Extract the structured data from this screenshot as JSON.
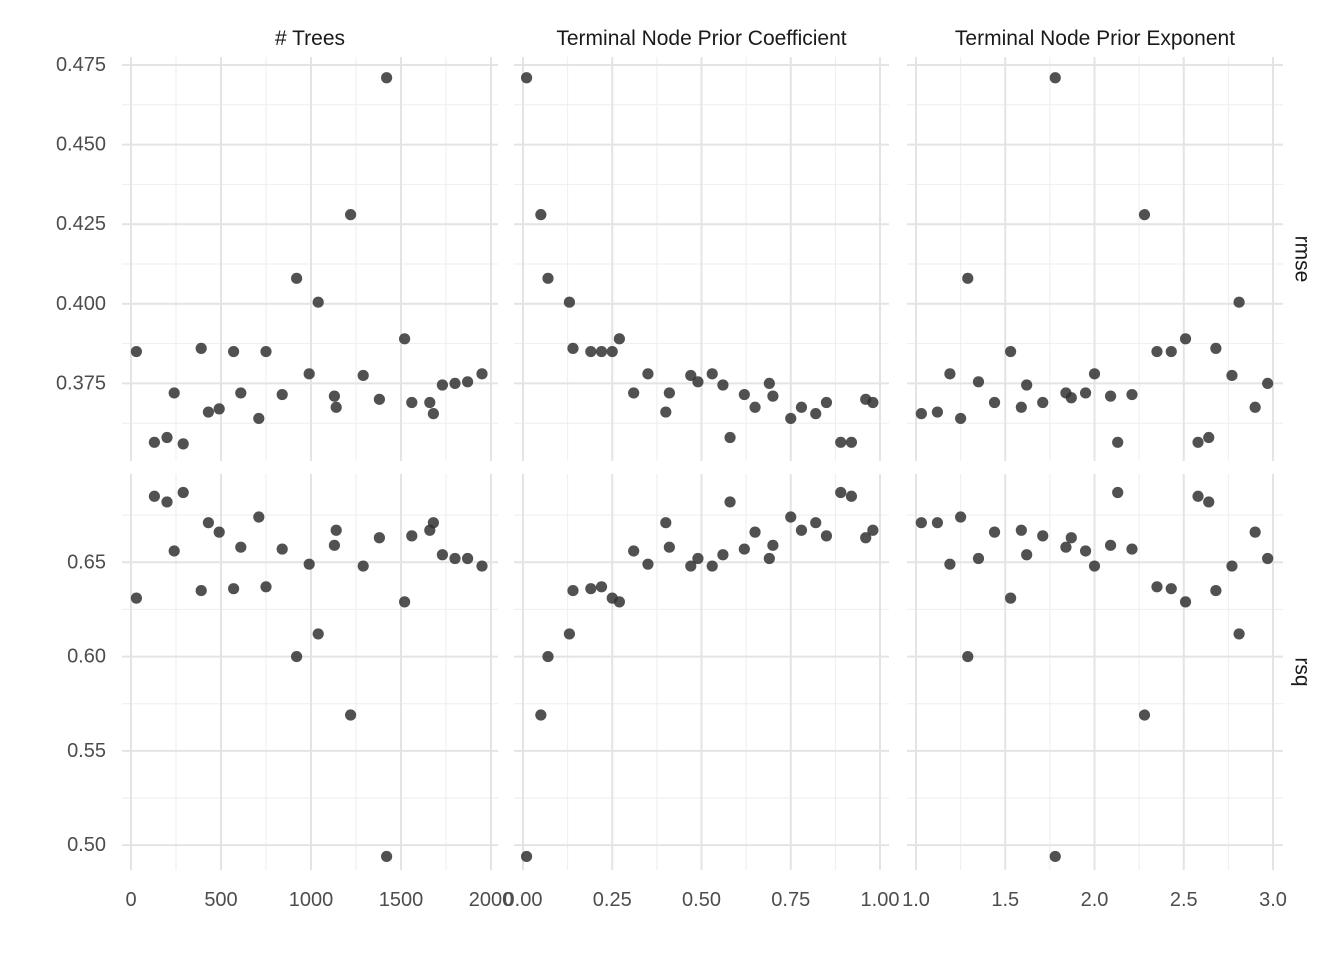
{
  "chart_data": {
    "type": "scatter",
    "point_color": "#333333",
    "grid": true,
    "facet_columns": [
      {
        "key": "trees",
        "label": "# Trees",
        "xlim": [
          0,
          2000
        ],
        "ticks": [
          0,
          500,
          1000,
          1500,
          2000
        ],
        "tick_labels": [
          "0",
          "500",
          "1000",
          "1500",
          "2000"
        ],
        "minor": [
          250,
          750,
          1250,
          1750
        ]
      },
      {
        "key": "coef",
        "label": "Terminal Node Prior Coefficient",
        "xlim": [
          0,
          1
        ],
        "ticks": [
          0,
          0.25,
          0.5,
          0.75,
          1
        ],
        "tick_labels": [
          "0.00",
          "0.25",
          "0.50",
          "0.75",
          "1.00"
        ],
        "minor": [
          0.125,
          0.375,
          0.625,
          0.875
        ]
      },
      {
        "key": "expo",
        "label": "Terminal Node Prior Exponent",
        "xlim": [
          1,
          3
        ],
        "ticks": [
          1,
          1.5,
          2,
          2.5,
          3
        ],
        "tick_labels": [
          "1.0",
          "1.5",
          "2.0",
          "2.5",
          "3.0"
        ],
        "minor": [
          1.25,
          1.75,
          2.25,
          2.75
        ]
      }
    ],
    "facet_rows": [
      {
        "key": "rmse",
        "label": "rmse",
        "ylim": [
          0.35,
          0.475
        ],
        "ticks": [
          0.375,
          0.4,
          0.425,
          0.45,
          0.475
        ],
        "tick_labels": [
          "0.375",
          "0.400",
          "0.425",
          "0.450",
          "0.475"
        ],
        "minor": [
          0.3625,
          0.3875,
          0.4125,
          0.4375,
          0.4625
        ]
      },
      {
        "key": "rsq",
        "label": "rsq",
        "ylim": [
          0.49,
          0.7
        ],
        "ticks": [
          0.5,
          0.55,
          0.6,
          0.65
        ],
        "tick_labels": [
          "0.50",
          "0.55",
          "0.60",
          "0.65"
        ],
        "minor": [
          0.525,
          0.575,
          0.625,
          0.675
        ]
      }
    ],
    "panels": [
      {
        "col": "trees",
        "row": "rmse",
        "points": [
          [
            30,
            0.385
          ],
          [
            130,
            0.3565
          ],
          [
            200,
            0.358
          ],
          [
            240,
            0.372
          ],
          [
            290,
            0.356
          ],
          [
            390,
            0.386
          ],
          [
            430,
            0.366
          ],
          [
            490,
            0.367
          ],
          [
            570,
            0.385
          ],
          [
            610,
            0.372
          ],
          [
            710,
            0.364
          ],
          [
            750,
            0.385
          ],
          [
            840,
            0.3715
          ],
          [
            920,
            0.408
          ],
          [
            990,
            0.378
          ],
          [
            1040,
            0.4005
          ],
          [
            1130,
            0.371
          ],
          [
            1140,
            0.3675
          ],
          [
            1220,
            0.428
          ],
          [
            1290,
            0.3775
          ],
          [
            1380,
            0.37
          ],
          [
            1420,
            0.471
          ],
          [
            1520,
            0.389
          ],
          [
            1560,
            0.369
          ],
          [
            1660,
            0.369
          ],
          [
            1680,
            0.3655
          ],
          [
            1730,
            0.3745
          ],
          [
            1800,
            0.375
          ],
          [
            1870,
            0.3755
          ],
          [
            1950,
            0.378
          ]
        ]
      },
      {
        "col": "trees",
        "row": "rsq",
        "points": [
          [
            30,
            0.631
          ],
          [
            130,
            0.685
          ],
          [
            200,
            0.682
          ],
          [
            240,
            0.656
          ],
          [
            290,
            0.687
          ],
          [
            390,
            0.635
          ],
          [
            430,
            0.671
          ],
          [
            490,
            0.666
          ],
          [
            570,
            0.636
          ],
          [
            610,
            0.658
          ],
          [
            710,
            0.674
          ],
          [
            750,
            0.637
          ],
          [
            840,
            0.657
          ],
          [
            920,
            0.6
          ],
          [
            990,
            0.649
          ],
          [
            1040,
            0.612
          ],
          [
            1130,
            0.659
          ],
          [
            1140,
            0.667
          ],
          [
            1220,
            0.569
          ],
          [
            1290,
            0.648
          ],
          [
            1380,
            0.663
          ],
          [
            1420,
            0.494
          ],
          [
            1520,
            0.629
          ],
          [
            1560,
            0.664
          ],
          [
            1660,
            0.667
          ],
          [
            1680,
            0.671
          ],
          [
            1730,
            0.654
          ],
          [
            1800,
            0.652
          ],
          [
            1870,
            0.652
          ],
          [
            1950,
            0.648
          ]
        ]
      },
      {
        "col": "coef",
        "row": "rmse",
        "points": [
          [
            0.01,
            0.471
          ],
          [
            0.05,
            0.428
          ],
          [
            0.07,
            0.408
          ],
          [
            0.13,
            0.4005
          ],
          [
            0.14,
            0.386
          ],
          [
            0.19,
            0.385
          ],
          [
            0.22,
            0.385
          ],
          [
            0.25,
            0.385
          ],
          [
            0.27,
            0.389
          ],
          [
            0.31,
            0.372
          ],
          [
            0.35,
            0.378
          ],
          [
            0.4,
            0.366
          ],
          [
            0.41,
            0.372
          ],
          [
            0.47,
            0.3775
          ],
          [
            0.49,
            0.3755
          ],
          [
            0.53,
            0.378
          ],
          [
            0.56,
            0.3745
          ],
          [
            0.58,
            0.358
          ],
          [
            0.62,
            0.3715
          ],
          [
            0.65,
            0.3675
          ],
          [
            0.69,
            0.375
          ],
          [
            0.7,
            0.371
          ],
          [
            0.75,
            0.364
          ],
          [
            0.78,
            0.3675
          ],
          [
            0.82,
            0.3655
          ],
          [
            0.85,
            0.369
          ],
          [
            0.89,
            0.3565
          ],
          [
            0.92,
            0.3565
          ],
          [
            0.96,
            0.37
          ],
          [
            0.98,
            0.369
          ]
        ]
      },
      {
        "col": "coef",
        "row": "rsq",
        "points": [
          [
            0.01,
            0.494
          ],
          [
            0.05,
            0.569
          ],
          [
            0.07,
            0.6
          ],
          [
            0.13,
            0.612
          ],
          [
            0.14,
            0.635
          ],
          [
            0.19,
            0.636
          ],
          [
            0.22,
            0.637
          ],
          [
            0.25,
            0.631
          ],
          [
            0.27,
            0.629
          ],
          [
            0.31,
            0.656
          ],
          [
            0.35,
            0.649
          ],
          [
            0.4,
            0.671
          ],
          [
            0.41,
            0.658
          ],
          [
            0.47,
            0.648
          ],
          [
            0.49,
            0.652
          ],
          [
            0.53,
            0.648
          ],
          [
            0.56,
            0.654
          ],
          [
            0.58,
            0.682
          ],
          [
            0.62,
            0.657
          ],
          [
            0.65,
            0.666
          ],
          [
            0.69,
            0.652
          ],
          [
            0.7,
            0.659
          ],
          [
            0.75,
            0.674
          ],
          [
            0.78,
            0.667
          ],
          [
            0.82,
            0.671
          ],
          [
            0.85,
            0.664
          ],
          [
            0.89,
            0.687
          ],
          [
            0.92,
            0.685
          ],
          [
            0.96,
            0.663
          ],
          [
            0.98,
            0.667
          ]
        ]
      },
      {
        "col": "expo",
        "row": "rmse",
        "points": [
          [
            1.03,
            0.3655
          ],
          [
            1.12,
            0.366
          ],
          [
            1.19,
            0.378
          ],
          [
            1.25,
            0.364
          ],
          [
            1.29,
            0.408
          ],
          [
            1.35,
            0.3755
          ],
          [
            1.44,
            0.369
          ],
          [
            1.53,
            0.385
          ],
          [
            1.59,
            0.3675
          ],
          [
            1.62,
            0.3745
          ],
          [
            1.71,
            0.369
          ],
          [
            1.78,
            0.471
          ],
          [
            1.84,
            0.372
          ],
          [
            1.87,
            0.3705
          ],
          [
            1.95,
            0.372
          ],
          [
            2.0,
            0.378
          ],
          [
            2.09,
            0.371
          ],
          [
            2.13,
            0.3565
          ],
          [
            2.21,
            0.3715
          ],
          [
            2.28,
            0.428
          ],
          [
            2.35,
            0.385
          ],
          [
            2.43,
            0.385
          ],
          [
            2.51,
            0.389
          ],
          [
            2.58,
            0.3565
          ],
          [
            2.64,
            0.358
          ],
          [
            2.68,
            0.386
          ],
          [
            2.77,
            0.3775
          ],
          [
            2.81,
            0.4005
          ],
          [
            2.9,
            0.3675
          ],
          [
            2.97,
            0.375
          ]
        ]
      },
      {
        "col": "expo",
        "row": "rsq",
        "points": [
          [
            1.03,
            0.671
          ],
          [
            1.12,
            0.671
          ],
          [
            1.19,
            0.649
          ],
          [
            1.25,
            0.674
          ],
          [
            1.29,
            0.6
          ],
          [
            1.35,
            0.652
          ],
          [
            1.44,
            0.666
          ],
          [
            1.53,
            0.631
          ],
          [
            1.59,
            0.667
          ],
          [
            1.62,
            0.654
          ],
          [
            1.71,
            0.664
          ],
          [
            1.78,
            0.494
          ],
          [
            1.84,
            0.658
          ],
          [
            1.87,
            0.663
          ],
          [
            1.95,
            0.656
          ],
          [
            2.0,
            0.648
          ],
          [
            2.09,
            0.659
          ],
          [
            2.13,
            0.687
          ],
          [
            2.21,
            0.657
          ],
          [
            2.28,
            0.569
          ],
          [
            2.35,
            0.637
          ],
          [
            2.43,
            0.636
          ],
          [
            2.51,
            0.629
          ],
          [
            2.58,
            0.685
          ],
          [
            2.64,
            0.682
          ],
          [
            2.68,
            0.635
          ],
          [
            2.77,
            0.648
          ],
          [
            2.81,
            0.612
          ],
          [
            2.9,
            0.666
          ],
          [
            2.97,
            0.652
          ]
        ]
      }
    ]
  }
}
